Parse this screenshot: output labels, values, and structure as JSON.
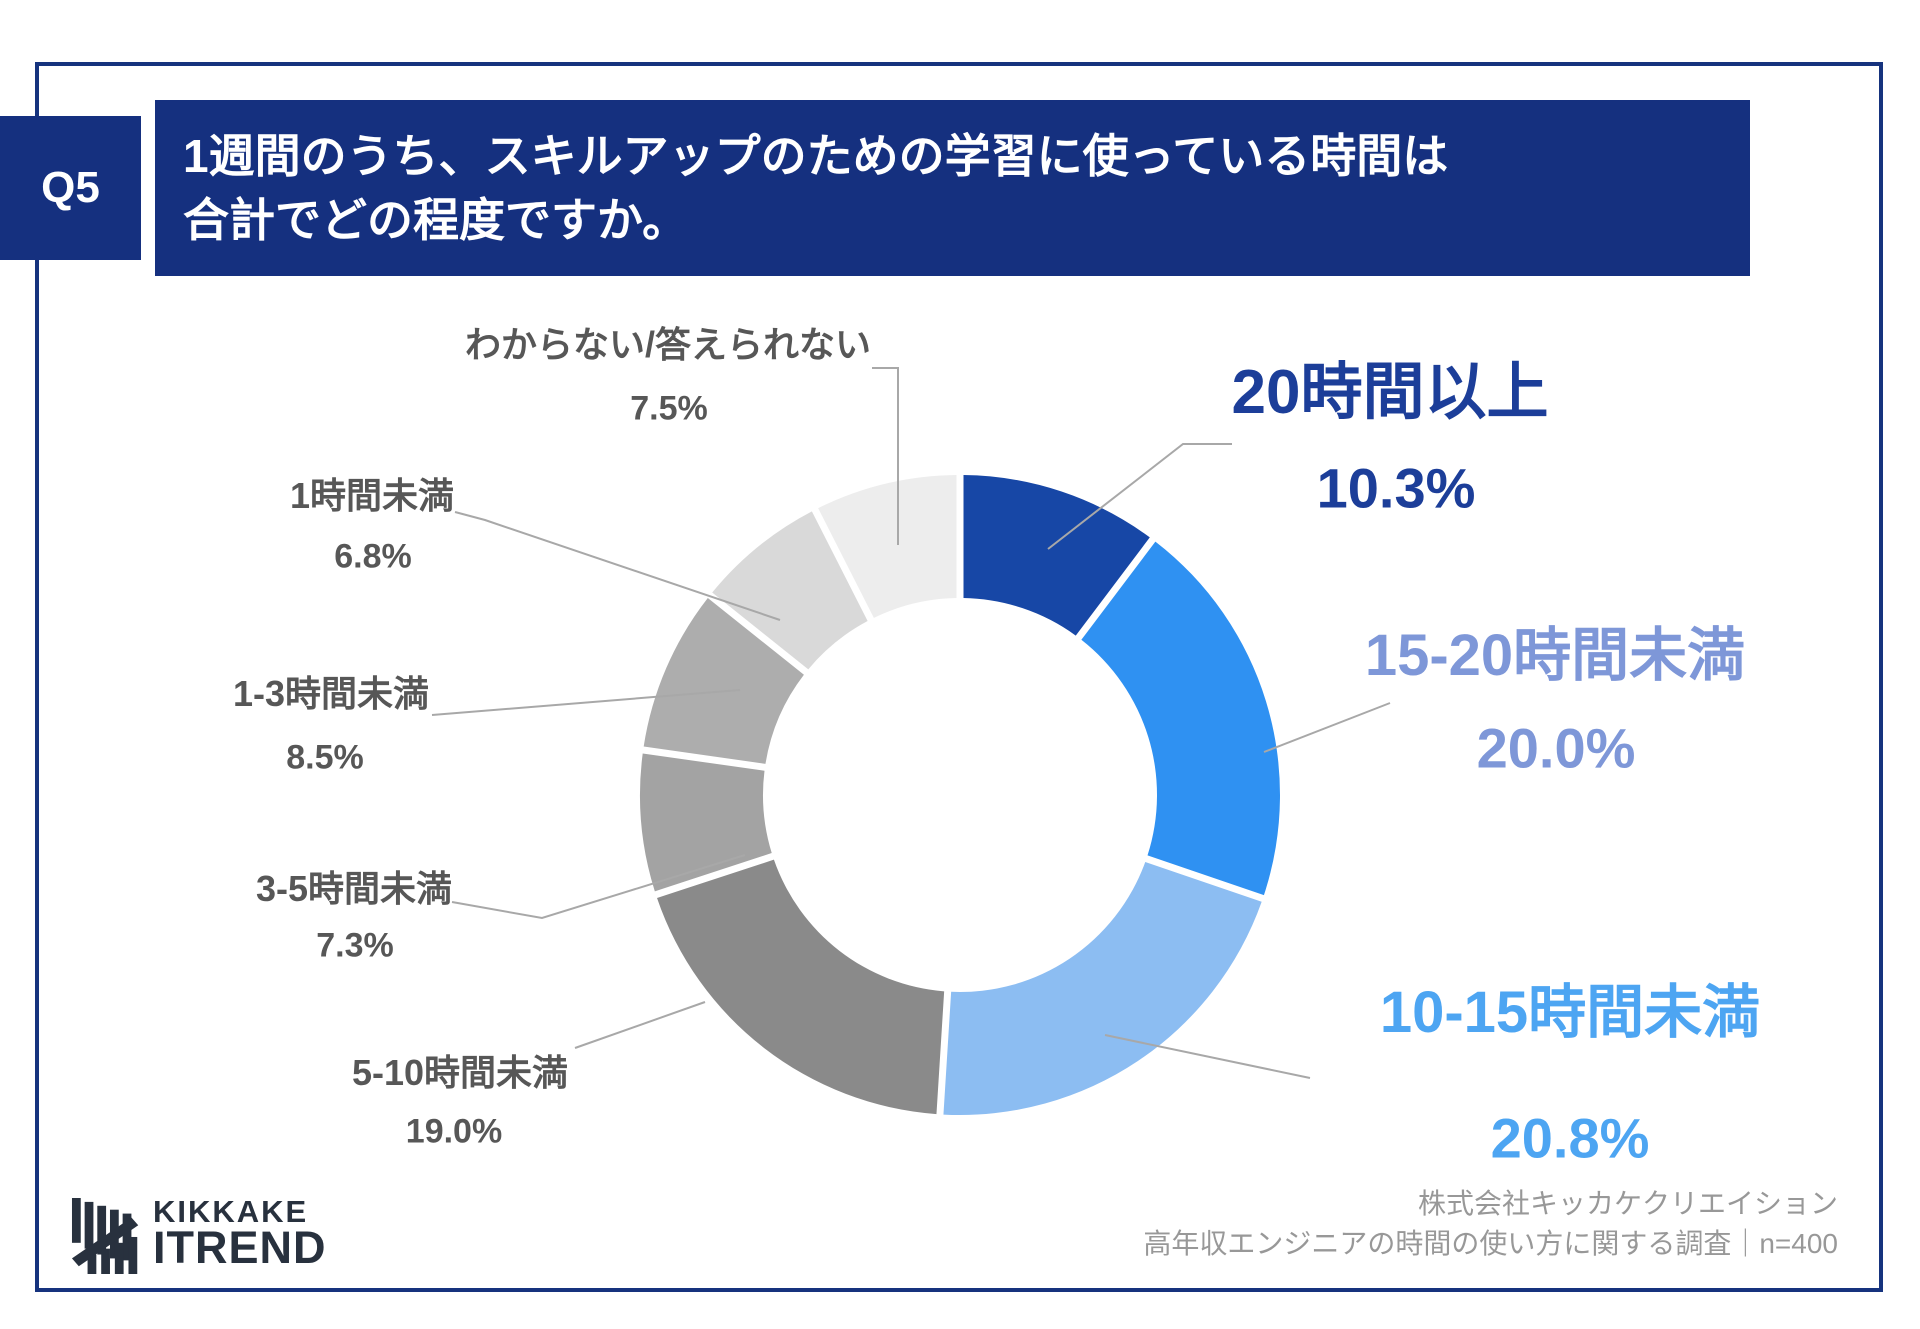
{
  "header": {
    "question_no": "Q5",
    "title_line1": "1週間のうち、スキルアップのための学習に使っている時間は",
    "title_line2": "合計でどの程度ですか。"
  },
  "chart_data": {
    "type": "pie",
    "subtype": "donut",
    "title": "1週間のうち、スキルアップのための学習に使っている時間は合計でどの程度ですか。",
    "start_angle_deg": 0,
    "direction": "clockwise",
    "inner_radius_ratio": 0.615,
    "legend_position": "none",
    "segments": [
      {
        "label": "20時間以上",
        "value": 10.3,
        "display": "10.3%",
        "color": "#1747A6",
        "label_color": "#1C3E99"
      },
      {
        "label": "15-20時間未満",
        "value": 20.0,
        "display": "20.0%",
        "color": "#2F91F2",
        "label_color": "#7E97D8"
      },
      {
        "label": "10-15時間未満",
        "value": 20.8,
        "display": "20.8%",
        "color": "#8CBDF2",
        "label_color": "#4DA5F2"
      },
      {
        "label": "5-10時間未満",
        "value": 19.0,
        "display": "19.0%",
        "color": "#8A8A8A",
        "label_color": "#575757"
      },
      {
        "label": "3-5時間未満",
        "value": 7.3,
        "display": "7.3%",
        "color": "#A3A3A3",
        "label_color": "#575757"
      },
      {
        "label": "1-3時間未満",
        "value": 8.5,
        "display": "8.5%",
        "color": "#ADADAD",
        "label_color": "#575757"
      },
      {
        "label": "1時間未満",
        "value": 6.8,
        "display": "6.8%",
        "color": "#D9D9D9",
        "label_color": "#575757"
      },
      {
        "label": "わからない/答えられない",
        "value": 7.5,
        "display": "7.5%",
        "color": "#EDEDED",
        "label_color": "#575757"
      }
    ]
  },
  "footer": {
    "brand_line1": "KIKKAKE",
    "brand_line2": "ITREND",
    "credit_line1": "株式会社キッカケクリエイション",
    "credit_line2": "高年収エンジニアの時間の使い方に関する調査｜n=400"
  }
}
